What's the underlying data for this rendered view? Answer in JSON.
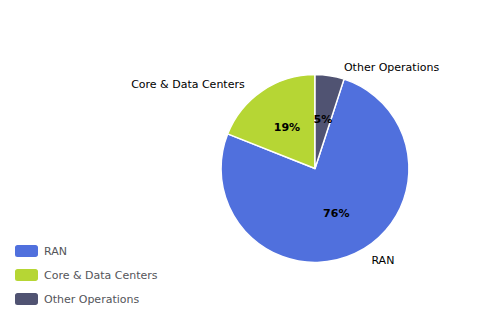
{
  "chart_data": {
    "type": "pie",
    "categories": [
      "RAN",
      "Core & Data Centers",
      "Other Operations"
    ],
    "values": [
      76,
      19,
      5
    ],
    "value_labels": [
      "76%",
      "19%",
      "5%"
    ],
    "data_labels": true,
    "annotations": [
      "RAN",
      "Core & Data Centers",
      "Other Operations"
    ],
    "legend": "left"
  }
}
